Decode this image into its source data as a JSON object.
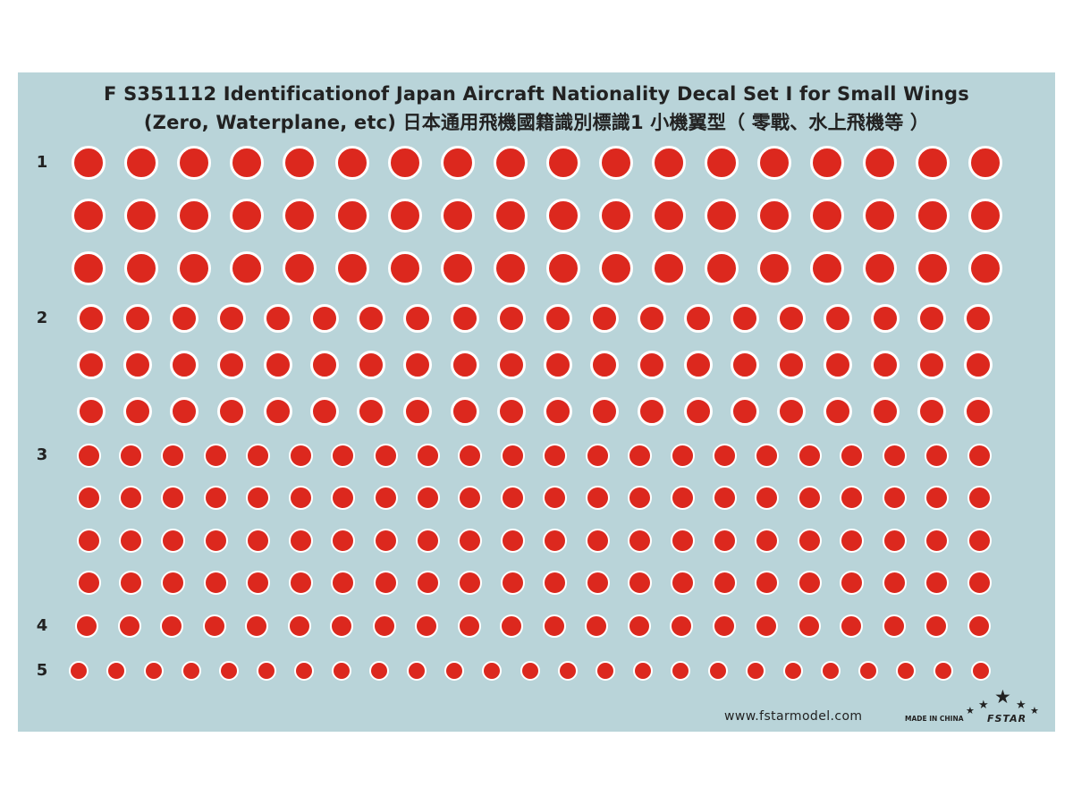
{
  "title": {
    "line1": "F S351112 Identificationof Japan Aircraft Nationality Decal Set I for Small Wings",
    "line2": "(Zero, Waterplane, etc) 日本通用飛機國籍識別標識1 小機翼型（ 零戰、水上飛機等 ）"
  },
  "colors": {
    "background": "#b9d4d9",
    "hinomaru_red": "#dc281e",
    "border_white": "#ffffff"
  },
  "decal_sets": [
    {
      "number": "1",
      "rows": 3,
      "per_row": 18
    },
    {
      "number": "2",
      "rows": 3,
      "per_row": 20
    },
    {
      "number": "3",
      "rows": 4,
      "per_row": 22
    },
    {
      "number": "4",
      "rows": 1,
      "per_row": 22
    },
    {
      "number": "5",
      "rows": 1,
      "per_row": 25
    }
  ],
  "footer": {
    "website": "www.fstarmodel.com",
    "made_in": "MADE IN CHINA",
    "brand": "FSTAR"
  }
}
